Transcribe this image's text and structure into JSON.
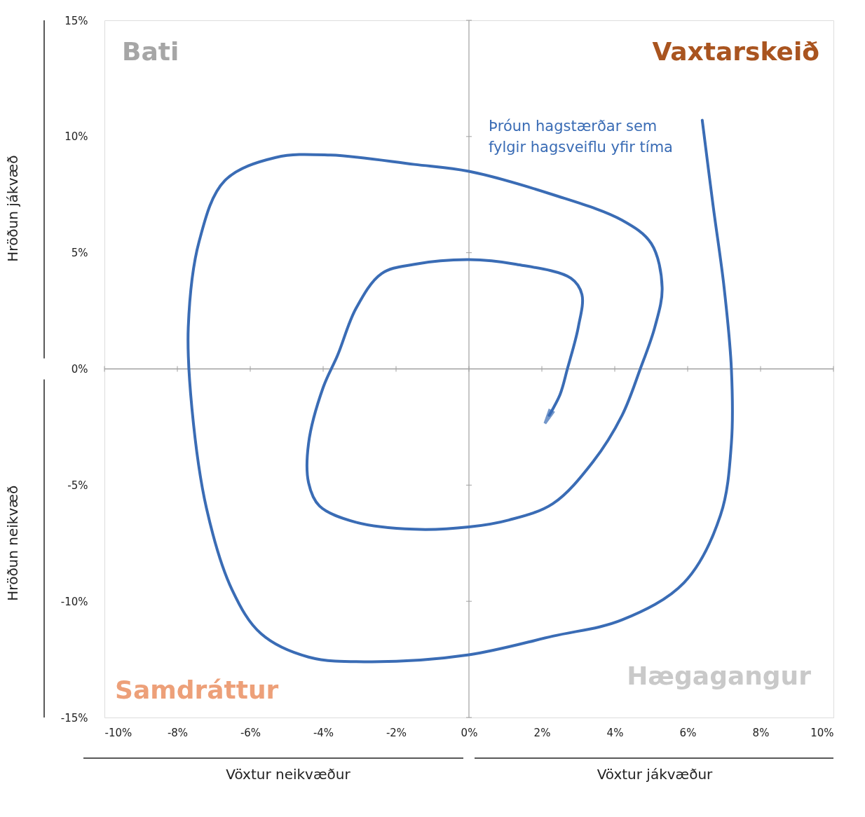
{
  "chart_data": {
    "type": "line",
    "xlabel": "Vöxtur neikvæður",
    "ylabel": "Hröðun jákvæð",
    "annotations": [
      "Bati",
      "Vaxtarskeið",
      "Samdráttur",
      "Hægagangur",
      "Þróun hagstærðar sem fylgir hagsveiflu yfir tíma",
      "Vöxtur jákvæður",
      "Hröðun neikvæð"
    ],
    "series": [
      {
        "color": "#3a6cb5",
        "x": [
          6.4,
          6.7,
          7.0,
          7.2,
          7.2,
          6.9,
          5.9,
          4.2,
          2.3,
          0,
          -2.7,
          -4.4,
          -5.7,
          -6.5,
          -7.2,
          -7.6,
          -7.7,
          -7.4,
          -6.7,
          -5.3,
          -3.8,
          -1.5,
          0,
          2.3,
          4.2,
          5.0,
          5.3,
          5.1,
          4.7,
          4.2,
          3.4,
          2.3,
          1.1,
          0,
          -1.5,
          -3.1,
          -4.1,
          -4.4,
          -4.4,
          -4.0,
          -3.6,
          -3.1,
          -2.4,
          -1.5,
          0,
          1.3,
          2.8,
          3.1,
          3.0,
          2.7,
          2.5,
          2.2
        ],
        "values": [
          10.7,
          7.0,
          3.5,
          0,
          -3.2,
          -6.3,
          -9.2,
          -10.8,
          -11.5,
          -12.3,
          -12.6,
          -12.4,
          -11.4,
          -9.5,
          -6.0,
          -1.7,
          1.8,
          5.5,
          8.1,
          9.1,
          9.2,
          8.8,
          8.5,
          7.5,
          6.4,
          5.4,
          3.5,
          1.8,
          0,
          -2.0,
          -4.0,
          -5.8,
          -6.5,
          -6.8,
          -6.9,
          -6.6,
          -5.9,
          -4.9,
          -3.2,
          -0.8,
          0.6,
          2.6,
          4.1,
          4.5,
          4.7,
          4.5,
          3.9,
          3.2,
          1.8,
          0,
          -1.1,
          -2.0
        ]
      }
    ],
    "xlim": [
      -10,
      10
    ],
    "xticks": [
      {
        "value": -10,
        "label": "-10%"
      },
      {
        "value": -8,
        "label": "-8%"
      },
      {
        "value": -6,
        "label": "-6%"
      },
      {
        "value": -4,
        "label": "-4%"
      },
      {
        "value": -2,
        "label": "-2%"
      },
      {
        "value": 0,
        "label": "0%"
      },
      {
        "value": 2,
        "label": "2%"
      },
      {
        "value": 4,
        "label": "4%"
      },
      {
        "value": 6,
        "label": "6%"
      },
      {
        "value": 8,
        "label": "8%"
      },
      {
        "value": 10,
        "label": "10%"
      }
    ],
    "ylim": [
      -15,
      15
    ],
    "yticks": [
      {
        "value": -15,
        "label": "-15%"
      },
      {
        "value": -10,
        "label": "-10%"
      },
      {
        "value": -5,
        "label": "-5%"
      },
      {
        "value": 0,
        "label": "0%"
      },
      {
        "value": 5,
        "label": "5%"
      },
      {
        "value": 10,
        "label": "10%"
      },
      {
        "value": 15,
        "label": "15%"
      }
    ],
    "grid": false,
    "marker": "none",
    "line_style": "solid"
  }
}
